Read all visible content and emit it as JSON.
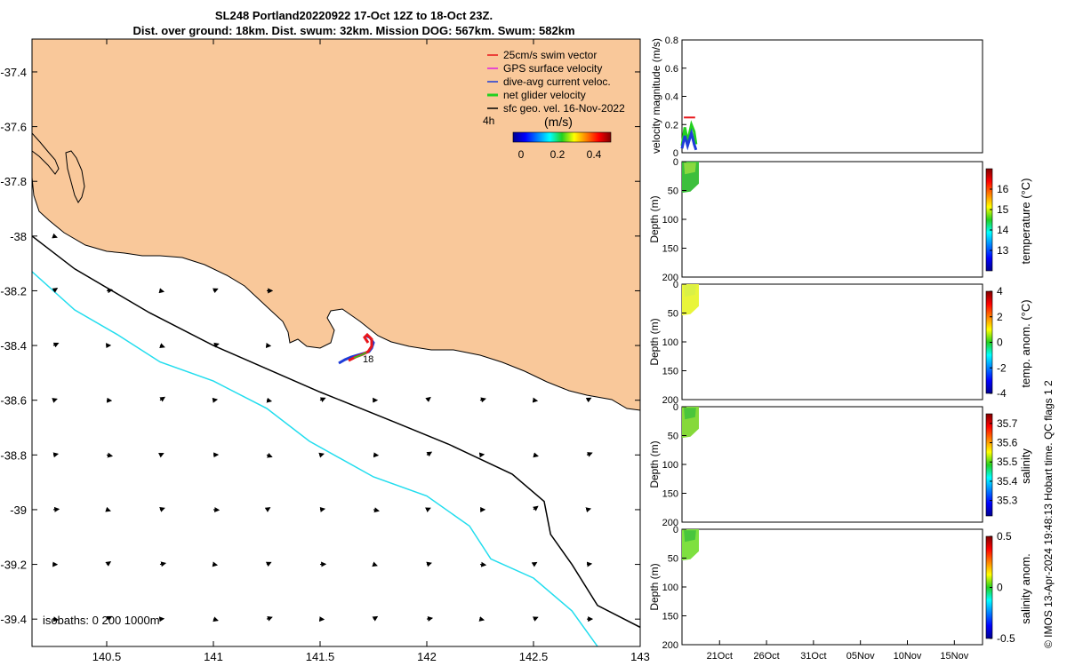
{
  "title_line1": "SL248 Portland20220922 17-Oct 12Z to 18-Oct 23Z.",
  "title_line2": "Dist. over ground: 18km. Dist. swum: 32km. Mission DOG: 567km. Swum: 582km",
  "copyright": "© IMOS 13-Apr-2024 19:48:13 Hobart time. QC flags 1  2",
  "colors": {
    "land": "#F9C89A",
    "isobath200": "#000000",
    "isobath1000": "#22DDEE",
    "track_red": "#E8161B",
    "track_blue": "#1E3CD8"
  },
  "chart_data": [
    {
      "type": "map",
      "name": "glider track map",
      "xlim": [
        140.15,
        143.0
      ],
      "ylim": [
        -39.5,
        -37.28
      ],
      "xticks": [
        "140.5",
        "141",
        "141.5",
        "142",
        "142.5",
        "143"
      ],
      "yticks": [
        "-37.4",
        "-37.6",
        "-37.8",
        "-38",
        "-38.2",
        "-38.4",
        "-38.6",
        "-38.8",
        "-39",
        "-39.2",
        "-39.4"
      ],
      "legend": {
        "entries": [
          {
            "label": "25cm/s swim vector",
            "color": "#E8161B"
          },
          {
            "label": "GPS surface velocity",
            "color": "#E020E0"
          },
          {
            "label": "dive-avg current veloc.",
            "color": "#1E3CD8"
          },
          {
            "label": "net glider velocity",
            "color": "#22D020"
          },
          {
            "label": "sfc geo. vel. 16-Nov-2022",
            "color": "#000000"
          }
        ],
        "scale_label": "4h",
        "colorbar_label": "(m/s)",
        "colorbar_ticks": [
          "0",
          "0.2",
          "0.4"
        ]
      },
      "isobaths_label": "isobaths: 0   200  1000m",
      "track_label": "18",
      "isobath_200": [
        [
          140.15,
          -38.0
        ],
        [
          140.35,
          -38.12
        ],
        [
          140.7,
          -38.28
        ],
        [
          141.0,
          -38.4
        ],
        [
          141.5,
          -38.57
        ],
        [
          141.85,
          -38.68
        ],
        [
          142.1,
          -38.76
        ],
        [
          142.4,
          -38.87
        ],
        [
          142.55,
          -38.97
        ],
        [
          142.58,
          -39.09
        ],
        [
          142.68,
          -39.2
        ],
        [
          142.8,
          -39.35
        ],
        [
          143.0,
          -39.43
        ]
      ],
      "isobath_1000": [
        [
          140.15,
          -38.13
        ],
        [
          140.35,
          -38.27
        ],
        [
          140.55,
          -38.36
        ],
        [
          140.75,
          -38.46
        ],
        [
          141.0,
          -38.53
        ],
        [
          141.25,
          -38.63
        ],
        [
          141.45,
          -38.75
        ],
        [
          141.75,
          -38.88
        ],
        [
          142.0,
          -38.95
        ],
        [
          142.2,
          -39.06
        ],
        [
          142.3,
          -39.18
        ],
        [
          142.5,
          -39.25
        ],
        [
          142.68,
          -39.37
        ],
        [
          142.8,
          -39.5
        ]
      ],
      "swim_arrows_grid_lon": [
        140.25,
        140.5,
        140.75,
        141.0,
        141.25,
        141.5,
        141.75,
        142.0,
        142.25,
        142.5,
        142.75
      ],
      "swim_arrows_grid_lat": [
        -38.0,
        -38.2,
        -38.4,
        -38.6,
        -38.8,
        -39.0,
        -39.2,
        -39.4
      ]
    },
    {
      "type": "line",
      "name": "velocity magnitude",
      "ylabel": "velocity magnitude (m/s)",
      "ylim": [
        0,
        0.8
      ],
      "yticks": [
        "0",
        "0.2",
        "0.4",
        "0.6",
        "0.8"
      ],
      "series": [
        {
          "name": "net glider velocity",
          "color": "#22D020",
          "x": [
            0.0,
            0.3,
            0.6,
            1.0,
            1.3,
            1.5
          ],
          "values": [
            0.05,
            0.18,
            0.08,
            0.2,
            0.15,
            0.06
          ]
        },
        {
          "name": "dive-avg current",
          "color": "#1E3CD8",
          "x": [
            0.0,
            0.3,
            0.6,
            1.0,
            1.3,
            1.5
          ],
          "values": [
            0.03,
            0.12,
            0.05,
            0.14,
            0.06,
            0.02
          ]
        },
        {
          "name": "swim vector",
          "color": "#E8161B",
          "x": [
            0.2,
            0.6,
            1.0,
            1.4
          ],
          "values": [
            0.25,
            0.25,
            0.25,
            0.25
          ]
        }
      ]
    },
    {
      "type": "heatmap",
      "name": "temperature section",
      "ylabel": "Depth (m)",
      "yticks": [
        "0",
        "50",
        "100",
        "150",
        "200"
      ],
      "colorbar_label": "temperature (°C)",
      "colorbar_ticks": [
        "13",
        "14",
        "15",
        "16"
      ],
      "clim": [
        12.0,
        17.0
      ]
    },
    {
      "type": "heatmap",
      "name": "temperature anomaly section",
      "ylabel": "Depth (m)",
      "yticks": [
        "0",
        "50",
        "100",
        "150",
        "200"
      ],
      "colorbar_label": "temp. anom. (°C)",
      "colorbar_ticks": [
        "-4",
        "-2",
        "0",
        "2",
        "4"
      ],
      "clim": [
        -4,
        4
      ]
    },
    {
      "type": "heatmap",
      "name": "salinity section",
      "ylabel": "Depth (m)",
      "yticks": [
        "0",
        "50",
        "100",
        "150",
        "200"
      ],
      "colorbar_label": "salinity",
      "colorbar_ticks": [
        "35.3",
        "35.4",
        "35.5",
        "35.6",
        "35.7"
      ],
      "clim": [
        35.22,
        35.75
      ]
    },
    {
      "type": "heatmap",
      "name": "salinity anomaly section",
      "ylabel": "Depth (m)",
      "yticks": [
        "0",
        "50",
        "100",
        "150",
        "200"
      ],
      "colorbar_label": "salinity anom.",
      "colorbar_ticks": [
        "-0.5",
        "0",
        "0.5"
      ],
      "clim": [
        -0.5,
        0.5
      ],
      "xticks": [
        "21Oct",
        "26Oct",
        "31Oct",
        "05Nov",
        "10Nov",
        "15Nov"
      ],
      "xlim_days": [
        0,
        32
      ],
      "xtick_days": [
        4,
        9,
        14,
        19,
        24,
        29
      ]
    }
  ]
}
